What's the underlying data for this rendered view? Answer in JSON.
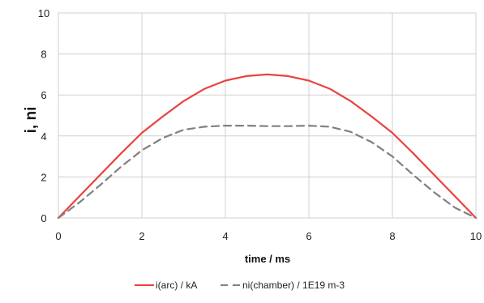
{
  "chart_data": {
    "type": "line",
    "xlabel": "time / ms",
    "ylabel": "i, ni",
    "xlim": [
      0,
      10
    ],
    "ylim": [
      0,
      10
    ],
    "x_ticks": [
      "0",
      "2",
      "4",
      "6",
      "8",
      "10"
    ],
    "y_ticks": [
      "0",
      "2",
      "4",
      "6",
      "8",
      "10"
    ],
    "grid": true,
    "legend_position": "bottom",
    "series": [
      {
        "name": "i(arc) / kA",
        "color": "#e8423f",
        "style": "solid",
        "x": [
          0,
          0.5,
          1,
          1.5,
          2,
          2.5,
          3,
          3.5,
          4,
          4.5,
          5,
          5.5,
          6,
          6.5,
          7,
          7.5,
          8,
          8.5,
          9,
          9.5,
          10
        ],
        "y": [
          0,
          1.05,
          2.1,
          3.15,
          4.15,
          4.95,
          5.7,
          6.3,
          6.7,
          6.92,
          7.0,
          6.92,
          6.7,
          6.3,
          5.7,
          4.95,
          4.15,
          3.15,
          2.1,
          1.05,
          0
        ]
      },
      {
        "name": "ni(chamber) / 1E19 m-3",
        "color": "#808080",
        "style": "dashed",
        "x": [
          0,
          0.5,
          1,
          1.5,
          2,
          2.5,
          3,
          3.5,
          4,
          4.5,
          5,
          5.5,
          6,
          6.5,
          7,
          7.5,
          8,
          8.5,
          9,
          9.5,
          10
        ],
        "y": [
          0,
          0.75,
          1.6,
          2.5,
          3.3,
          3.9,
          4.3,
          4.45,
          4.5,
          4.5,
          4.48,
          4.48,
          4.5,
          4.45,
          4.2,
          3.7,
          3.0,
          2.1,
          1.25,
          0.5,
          0
        ]
      }
    ]
  }
}
